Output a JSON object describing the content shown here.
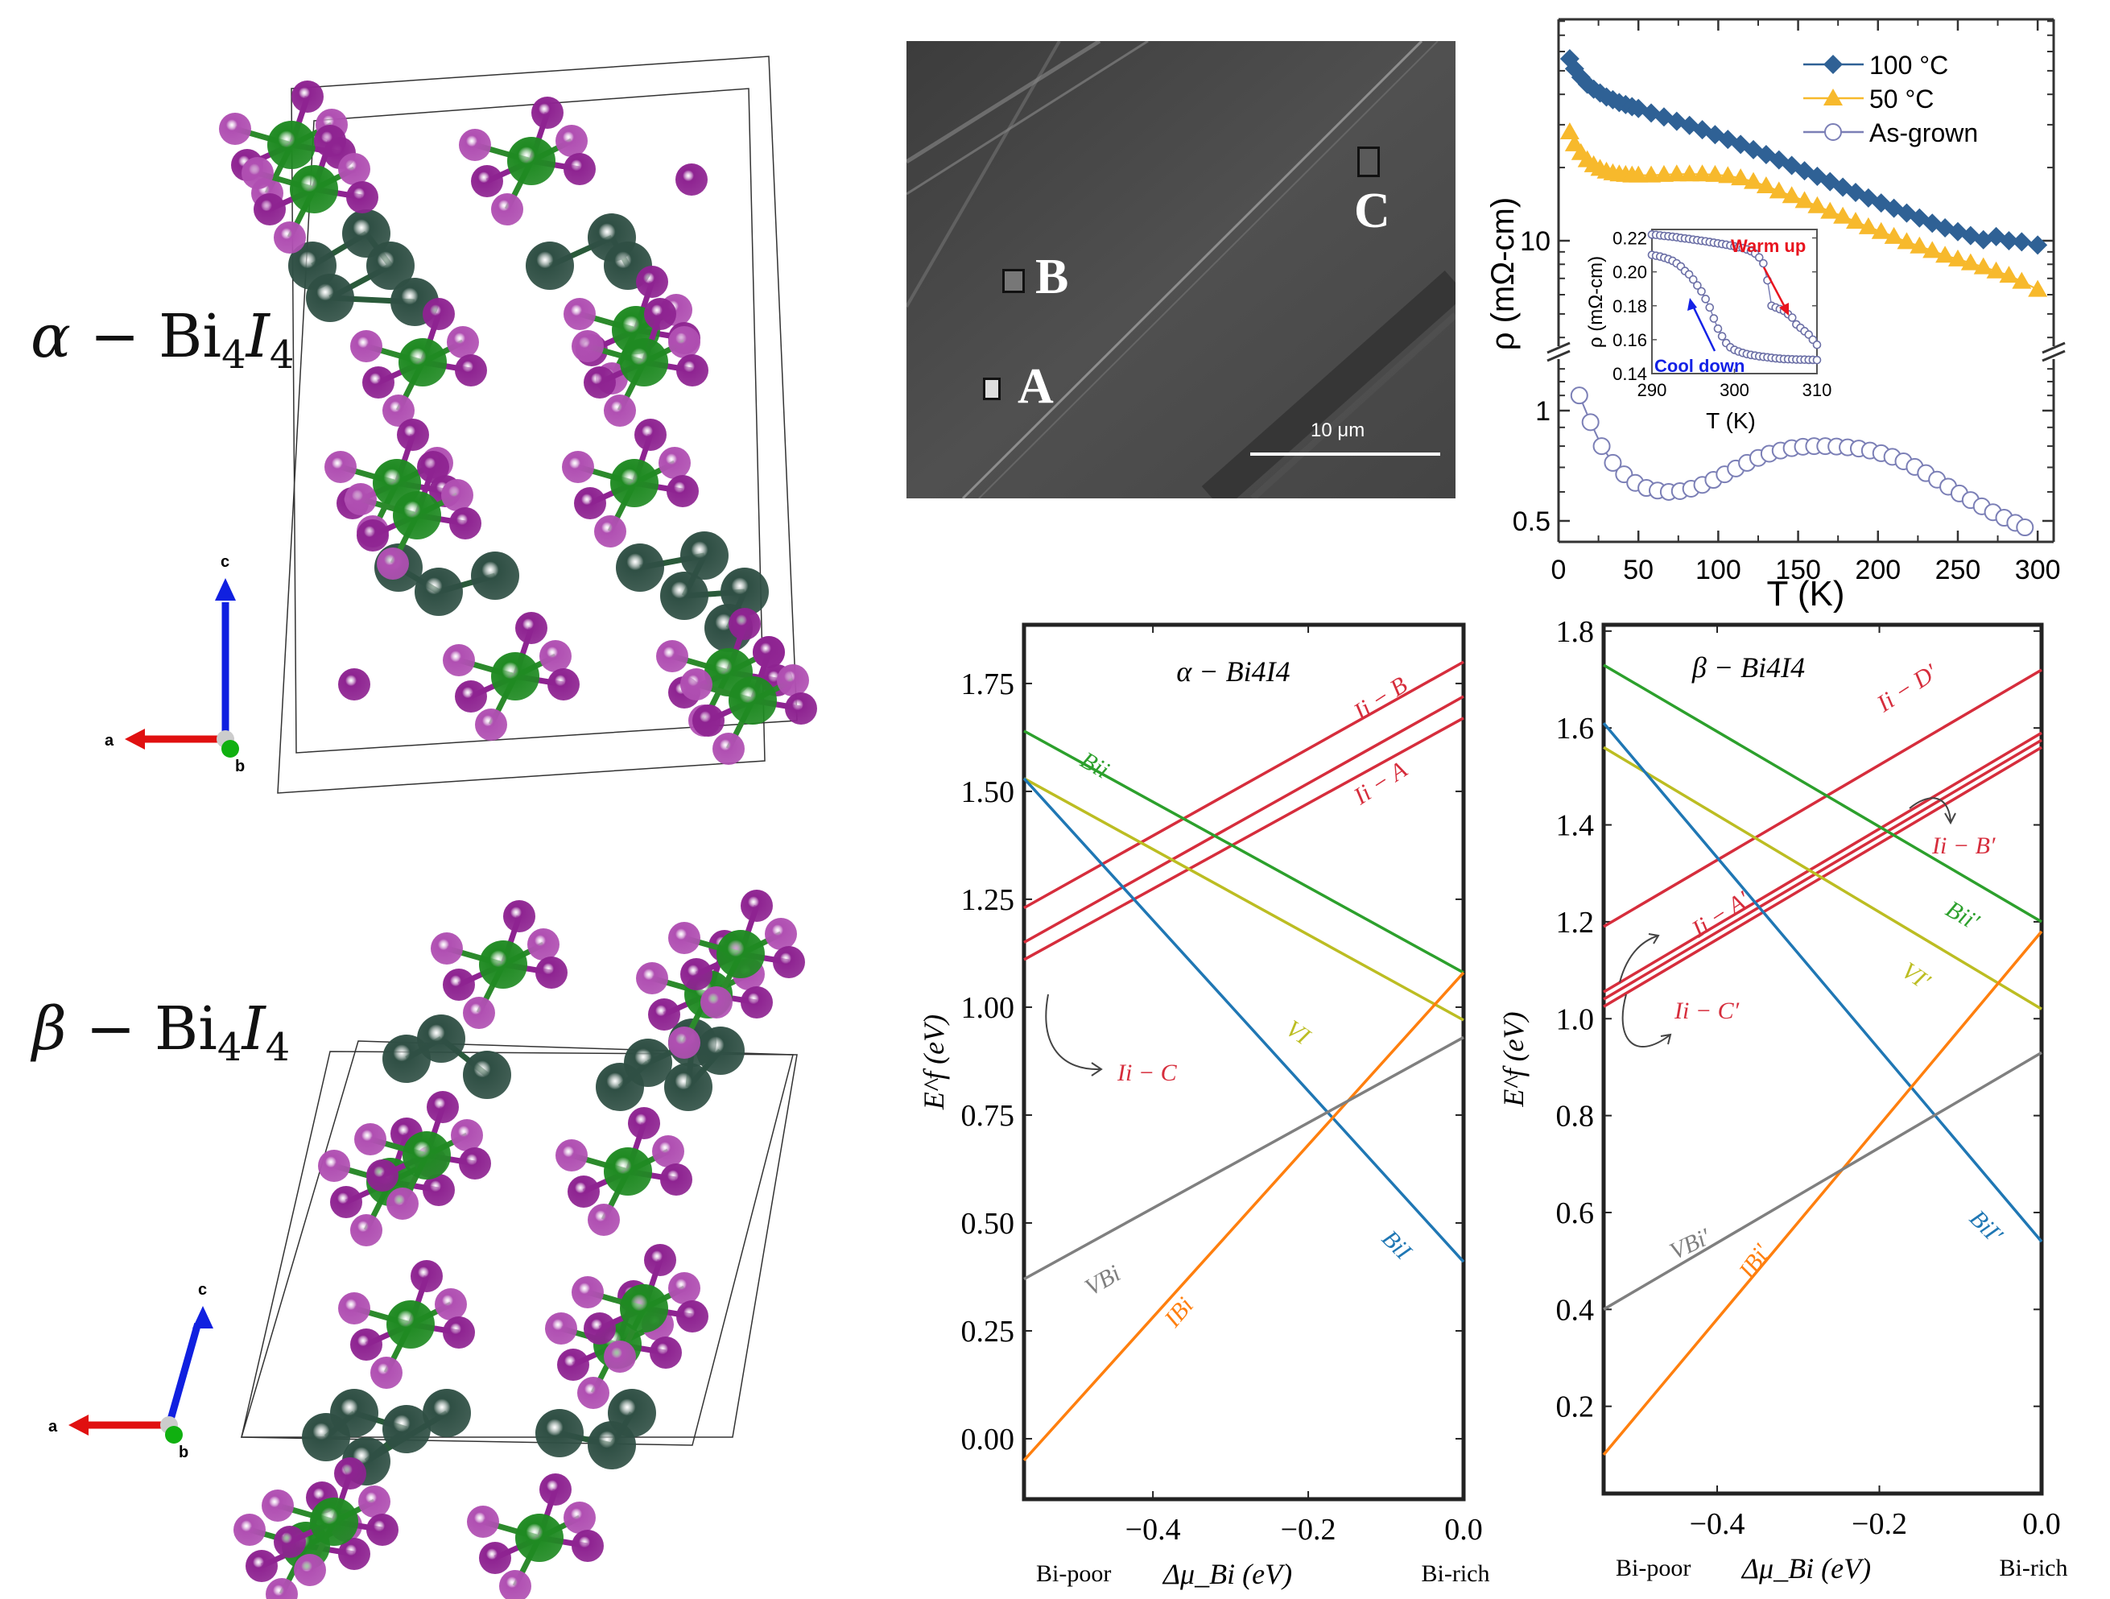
{
  "structures": [
    {
      "title_greek": "α",
      "title_rest": "− Bi",
      "sub1": "4",
      "title_I": "I",
      "sub2": "4",
      "axes": {
        "a": "a",
        "b": "b",
        "c": "c"
      }
    },
    {
      "title_greek": "β",
      "title_rest": "− Bi",
      "sub1": "4",
      "title_I": "I",
      "sub2": "4",
      "axes": {
        "a": "a",
        "b": "b",
        "c": "c"
      }
    }
  ],
  "atom_colors": {
    "iodine": "#8e2391",
    "iodine_light": "#b04fb2",
    "bismuth": "#1f8a22",
    "bismuth_dark": "#2f4f44",
    "axis_a": "#e01010",
    "axis_b": "#10b010",
    "axis_c": "#1020e0"
  },
  "sem": {
    "markers": [
      "A",
      "B",
      "C"
    ],
    "scale_bar": "10 μm"
  },
  "chart_data": [
    {
      "id": "resistivity",
      "type": "scatter",
      "xlabel": "T (K)",
      "ylabel": "ρ (mΩ-cm)",
      "x_range": [
        0,
        310
      ],
      "x_ticks": [
        0,
        50,
        100,
        150,
        200,
        250,
        300
      ],
      "y_scale": "log (broken axis)",
      "y_upper_range": [
        3.5,
        81
      ],
      "y_lower_range": [
        0.44,
        1.45
      ],
      "y_ticks_labeled": [
        "10",
        "1",
        "0.5"
      ],
      "legend_position": "top-right",
      "series": [
        {
          "name": "100 °C",
          "marker": "diamond",
          "color": "#2f6195",
          "segment": "upper",
          "x": [
            7,
            10,
            14,
            18,
            22,
            26,
            30,
            34,
            38,
            42,
            46,
            50,
            58,
            66,
            74,
            82,
            90,
            98,
            106,
            114,
            122,
            130,
            138,
            146,
            154,
            162,
            170,
            178,
            186,
            194,
            202,
            210,
            218,
            226,
            234,
            242,
            250,
            258,
            266,
            274,
            282,
            290,
            300
          ],
          "y": [
            56,
            51,
            47,
            44,
            42,
            40.5,
            39,
            38,
            37,
            36.3,
            35.6,
            35,
            33.5,
            32.3,
            31,
            29.8,
            28.6,
            27.3,
            26.1,
            24.9,
            23.7,
            22.6,
            21.5,
            20.4,
            19.4,
            18.4,
            17.5,
            16.6,
            15.8,
            15.0,
            14.3,
            13.6,
            13.0,
            12.4,
            11.8,
            11.3,
            10.9,
            10.5,
            10.1,
            10.4,
            10.0,
            9.9,
            9.6
          ]
        },
        {
          "name": "50 °C",
          "marker": "triangle",
          "color": "#f7b92c",
          "segment": "upper",
          "x": [
            7,
            10,
            14,
            18,
            22,
            26,
            30,
            34,
            38,
            42,
            46,
            50,
            58,
            66,
            74,
            82,
            90,
            98,
            106,
            114,
            122,
            130,
            138,
            146,
            154,
            162,
            170,
            178,
            186,
            194,
            202,
            210,
            218,
            226,
            234,
            242,
            250,
            258,
            266,
            274,
            282,
            290,
            300
          ],
          "y": [
            28,
            25,
            23,
            21.5,
            20.5,
            19.8,
            19.3,
            19,
            18.8,
            18.7,
            18.6,
            18.6,
            18.6,
            18.7,
            18.8,
            18.8,
            18.8,
            18.7,
            18.5,
            18.1,
            17.5,
            16.8,
            16.0,
            15.3,
            14.6,
            13.9,
            13.2,
            12.6,
            12.0,
            11.4,
            10.9,
            10.4,
            9.9,
            9.5,
            9.1,
            8.7,
            8.4,
            8.1,
            7.8,
            7.5,
            7.2,
            6.8,
            6.3
          ]
        },
        {
          "name": "As-grown",
          "marker": "open-circle",
          "color": "#7b7fb6",
          "segment": "lower",
          "x": [
            13,
            20,
            27,
            34,
            41,
            48,
            55,
            62,
            69,
            76,
            83,
            90,
            97,
            104,
            111,
            118,
            125,
            132,
            139,
            146,
            153,
            160,
            167,
            174,
            181,
            188,
            195,
            202,
            209,
            216,
            223,
            230,
            237,
            244,
            251,
            258,
            265,
            272,
            279,
            286,
            292
          ],
          "y": [
            1.1,
            0.93,
            0.8,
            0.72,
            0.67,
            0.635,
            0.615,
            0.605,
            0.6,
            0.603,
            0.612,
            0.627,
            0.647,
            0.67,
            0.695,
            0.72,
            0.743,
            0.763,
            0.778,
            0.79,
            0.797,
            0.8,
            0.8,
            0.798,
            0.794,
            0.788,
            0.778,
            0.765,
            0.748,
            0.727,
            0.702,
            0.675,
            0.648,
            0.62,
            0.594,
            0.57,
            0.548,
            0.528,
            0.51,
            0.494,
            0.48
          ]
        }
      ],
      "inset": {
        "xlabel": "T (K)",
        "ylabel": "ρ (mΩ-cm)",
        "x_range": [
          290,
          310
        ],
        "y_range": [
          0.14,
          0.225
        ],
        "x_ticks": [
          290,
          300,
          310
        ],
        "y_ticks": [
          "0.14",
          "0.16",
          "0.18",
          "0.20",
          "0.22"
        ],
        "annotations": [
          {
            "text": "Warm up",
            "color": "#e8141e"
          },
          {
            "text": "Cool down",
            "color": "#1422e6"
          }
        ],
        "series": [
          {
            "name": "Warm up",
            "x": [
              290,
              290.5,
              291,
              291.5,
              292,
              292.5,
              293,
              293.5,
              294,
              294.5,
              295,
              295.5,
              296,
              296.5,
              297,
              297.5,
              298,
              298.5,
              299,
              299.5,
              300,
              300.5,
              301,
              301.5,
              302,
              302.5,
              303,
              303.5,
              304,
              304.5,
              305,
              305.5,
              306,
              306.5,
              307,
              307.5,
              308,
              308.5,
              309,
              309.5,
              310
            ],
            "y": [
              0.222,
              0.2218,
              0.2215,
              0.2212,
              0.221,
              0.2207,
              0.2204,
              0.22,
              0.2197,
              0.2194,
              0.219,
              0.2187,
              0.2183,
              0.218,
              0.2176,
              0.2172,
              0.2168,
              0.2164,
              0.216,
              0.2155,
              0.215,
              0.2145,
              0.214,
              0.2132,
              0.2122,
              0.2108,
              0.2085,
              0.205,
              0.195,
              0.18,
              0.179,
              0.178,
              0.177,
              0.175,
              0.173,
              0.169,
              0.167,
              0.165,
              0.163,
              0.16,
              0.157
            ]
          },
          {
            "name": "Cool down",
            "x": [
              290,
              290.5,
              291,
              291.5,
              292,
              292.5,
              293,
              293.5,
              294,
              294.5,
              295,
              295.5,
              296,
              296.5,
              297,
              297.5,
              298,
              298.5,
              299,
              299.5,
              300,
              300.5,
              301,
              301.5,
              302,
              302.5,
              303,
              303.5,
              304,
              304.5,
              305,
              305.5,
              306,
              306.5,
              307,
              307.5,
              308,
              308.5,
              309,
              309.5,
              310
            ],
            "y": [
              0.21,
              0.2095,
              0.209,
              0.2083,
              0.2075,
              0.2065,
              0.205,
              0.2032,
              0.2005,
              0.1985,
              0.1955,
              0.192,
              0.1885,
              0.184,
              0.179,
              0.1725,
              0.1665,
              0.162,
              0.158,
              0.1555,
              0.154,
              0.153,
              0.1522,
              0.1515,
              0.151,
              0.1506,
              0.1502,
              0.1499,
              0.1496,
              0.1493,
              0.149,
              0.1488,
              0.1486,
              0.1485,
              0.1484,
              0.1483,
              0.1482,
              0.1482,
              0.1481,
              0.1481,
              0.148
            ]
          }
        ]
      }
    },
    {
      "id": "alpha-formation",
      "type": "line",
      "title": "α − Bi4I4",
      "xlabel": "Δμ_Bi (eV)",
      "ylabel": "E^f (eV)",
      "x_range": [
        -0.566,
        0.0
      ],
      "y_range": [
        -0.14,
        1.886
      ],
      "x_ticks": [
        -0.4,
        -0.2,
        0.0
      ],
      "x_tick_labels": [
        "−0.4",
        "−0.2",
        "0.0"
      ],
      "y_ticks": [
        0.0,
        0.25,
        0.5,
        0.75,
        1.0,
        1.25,
        1.5,
        1.75
      ],
      "y_tick_labels": [
        "0.00",
        "0.25",
        "0.50",
        "0.75",
        "1.00",
        "1.25",
        "1.50",
        "1.75"
      ],
      "x_end_labels": {
        "left": "Bi-poor",
        "right": "Bi-rich"
      },
      "series": [
        {
          "name": "I_i − B",
          "color": "#d62d3c",
          "x": [
            -0.566,
            0.0
          ],
          "y": [
            1.23,
            1.8
          ],
          "label": "Ii − B"
        },
        {
          "name": "I_i − C",
          "color": "#d62d3c",
          "x": [
            -0.566,
            0.0
          ],
          "y": [
            1.15,
            1.72
          ],
          "label": "Ii − C"
        },
        {
          "name": "I_i − A",
          "color": "#d62d3c",
          "x": [
            -0.566,
            0.0
          ],
          "y": [
            1.11,
            1.67
          ],
          "label": "Ii − A"
        },
        {
          "name": "Bi_i",
          "color": "#2ca02c",
          "x": [
            -0.566,
            0.0
          ],
          "y": [
            1.64,
            1.08
          ],
          "label": "Bii"
        },
        {
          "name": "V_I",
          "color": "#bcbd22",
          "x": [
            -0.566,
            0.0
          ],
          "y": [
            1.53,
            0.97
          ],
          "label": "VI"
        },
        {
          "name": "Bi_I",
          "color": "#1f77b4",
          "x": [
            -0.566,
            0.0
          ],
          "y": [
            1.53,
            0.41
          ],
          "label": "BiI"
        },
        {
          "name": "I_Bi",
          "color": "#ff7f0e",
          "x": [
            -0.566,
            0.0
          ],
          "y": [
            -0.05,
            1.08
          ],
          "label": "IBi"
        },
        {
          "name": "V_Bi",
          "color": "#7f7f7f",
          "x": [
            -0.566,
            0.0
          ],
          "y": [
            0.37,
            0.93
          ],
          "label": "VBi"
        }
      ]
    },
    {
      "id": "beta-formation",
      "type": "line",
      "title": "β − Bi4I4",
      "xlabel": "Δμ_Bi (eV)",
      "ylabel": "E^f (eV)",
      "x_range": [
        -0.54,
        0.0
      ],
      "y_range": [
        0.02,
        1.813
      ],
      "x_ticks": [
        -0.4,
        -0.2,
        0.0
      ],
      "x_tick_labels": [
        "−0.4",
        "−0.2",
        "0.0"
      ],
      "y_ticks": [
        0.2,
        0.4,
        0.6,
        0.8,
        1.0,
        1.2,
        1.4,
        1.6,
        1.8
      ],
      "y_tick_labels": [
        "0.2",
        "0.4",
        "0.6",
        "0.8",
        "1.0",
        "1.2",
        "1.4",
        "1.6",
        "1.8"
      ],
      "x_end_labels": {
        "left": "Bi-poor",
        "right": "Bi-rich"
      },
      "series": [
        {
          "name": "I_i − D′",
          "color": "#d62d3c",
          "x": [
            -0.54,
            0.0
          ],
          "y": [
            1.19,
            1.72
          ],
          "label": "Ii − D′"
        },
        {
          "name": "I_i − A′",
          "color": "#d62d3c",
          "x": [
            -0.54,
            0.0
          ],
          "y": [
            1.055,
            1.59
          ],
          "label": "Ii − A′"
        },
        {
          "name": "I_i − B′",
          "color": "#d62d3c",
          "x": [
            -0.54,
            0.0
          ],
          "y": [
            1.04,
            1.575
          ],
          "label": "Ii − B′"
        },
        {
          "name": "I_i − C′",
          "color": "#d62d3c",
          "x": [
            -0.54,
            0.0
          ],
          "y": [
            1.025,
            1.56
          ],
          "label": "Ii − C′"
        },
        {
          "name": "Bi_i′",
          "color": "#2ca02c",
          "x": [
            -0.54,
            0.0
          ],
          "y": [
            1.73,
            1.2
          ],
          "label": "Bii′"
        },
        {
          "name": "V_I′",
          "color": "#bcbd22",
          "x": [
            -0.54,
            0.0
          ],
          "y": [
            1.56,
            1.02
          ],
          "label": "VI′"
        },
        {
          "name": "Bi_I′",
          "color": "#1f77b4",
          "x": [
            -0.54,
            0.0
          ],
          "y": [
            1.61,
            0.54
          ],
          "label": "BiI′"
        },
        {
          "name": "I_Bi′",
          "color": "#ff7f0e",
          "x": [
            -0.54,
            0.0
          ],
          "y": [
            0.1,
            1.18
          ],
          "label": "IBi′"
        },
        {
          "name": "V_Bi′",
          "color": "#7f7f7f",
          "x": [
            -0.54,
            0.0
          ],
          "y": [
            0.4,
            0.93
          ],
          "label": "VBi′"
        }
      ]
    }
  ]
}
